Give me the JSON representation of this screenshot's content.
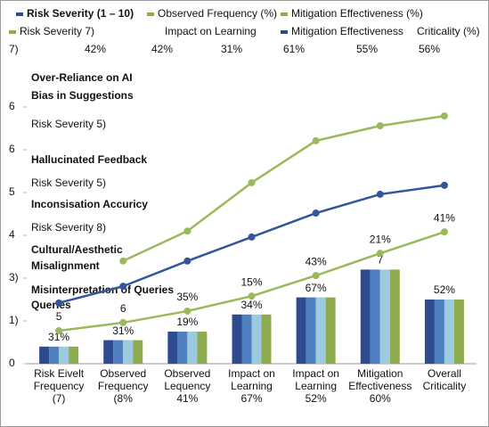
{
  "chart_data": {
    "type": "bar-line",
    "legend": [
      {
        "label": "Risk Severity (1 – 10)",
        "color": "#2e4b8f",
        "bold": true
      },
      {
        "label": "Observed Frequency (%)",
        "color": "#8eac4e"
      },
      {
        "label": "Mitigation Effectiveness (%)",
        "color": "#8eac4e"
      },
      {
        "label": "Risk Severity 7)",
        "color": "#8eac4e"
      },
      {
        "label": "Impact on Learning"
      },
      {
        "label": "Mitigation Effectiveness",
        "color": "#2e4b8f"
      },
      {
        "label": "Criticality (%)"
      }
    ],
    "legend_values": [
      "7)",
      "42%",
      "42%",
      "31%",
      "61%",
      "55%",
      "56%"
    ],
    "annotations": [
      {
        "text": "Over-Reliance on AI",
        "bold": true
      },
      {
        "text": "Bias in Suggestions",
        "bold": true
      },
      {
        "text": "Risk Severity 5)"
      },
      {
        "text": "Hallucinated Feedback",
        "bold": true
      },
      {
        "text": "Risk Severity 5)"
      },
      {
        "text": "Inconsisation Accuricy",
        "bold": true
      },
      {
        "text": "Risk Severity 8)"
      },
      {
        "text": "Cultural/Aesthetic",
        "bold": true
      },
      {
        "text": "Misalignment",
        "bold": true
      },
      {
        "text": "Misinterpretation of Queries",
        "bold": true
      },
      {
        "text": "Queries",
        "bold": true
      }
    ],
    "categories": [
      [
        "Risk Eivelt",
        "Frequency",
        "(7)"
      ],
      [
        "Observed",
        "Frequency",
        "(8%"
      ],
      [
        "Observed",
        "Lequency",
        "41%"
      ],
      [
        "Impact on",
        "Learning",
        "67%"
      ],
      [
        "Impact on",
        "Learning",
        "52%"
      ],
      [
        "Mitigation",
        "Effectiveness",
        "60%"
      ],
      [
        "Overall",
        "Criticality"
      ]
    ],
    "ylim": [
      0,
      6.2
    ],
    "yticks": [
      0,
      {
        "value": 1,
        "label": "1)"
      },
      {
        "value": 2,
        "label": "3)"
      },
      {
        "value": 3,
        "label": "4"
      },
      {
        "value": 4,
        "label": "5"
      },
      {
        "value": 5,
        "label": "6"
      },
      6
    ],
    "bars": [
      {
        "color": "#2e4b8f",
        "values": [
          0.4,
          0.55,
          0.75,
          1.15,
          1.55,
          2.2,
          1.5
        ]
      },
      {
        "color": "#4f7fc0",
        "values": [
          0.4,
          0.55,
          0.75,
          1.15,
          1.55,
          2.2,
          1.5
        ]
      },
      {
        "color": "#9ccbe0",
        "values": [
          0.4,
          0.55,
          0.75,
          1.15,
          1.55,
          2.2,
          1.5
        ]
      },
      {
        "color": "#8eac4e",
        "values": [
          0.4,
          0.55,
          0.75,
          1.15,
          1.55,
          2.2,
          1.5
        ]
      }
    ],
    "bar_labels": [
      "31%",
      "31%",
      "19%",
      "34%",
      "67%",
      "7",
      "52%"
    ],
    "lines": [
      {
        "color": "#9bb85a",
        "values": [
          null,
          2.4,
          3.1,
          4.23,
          5.21,
          5.56,
          5.79
        ]
      },
      {
        "color": "#34549c",
        "values": [
          1.42,
          1.81,
          2.4,
          2.96,
          3.52,
          3.96,
          4.17
        ]
      },
      {
        "color": "#9bb85a",
        "values": [
          0.77,
          0.96,
          1.23,
          1.58,
          2.06,
          2.58,
          3.08
        ]
      }
    ],
    "point_labels": [
      "5",
      "6",
      "35%",
      "15%",
      "43%",
      "21%",
      "41%"
    ]
  }
}
